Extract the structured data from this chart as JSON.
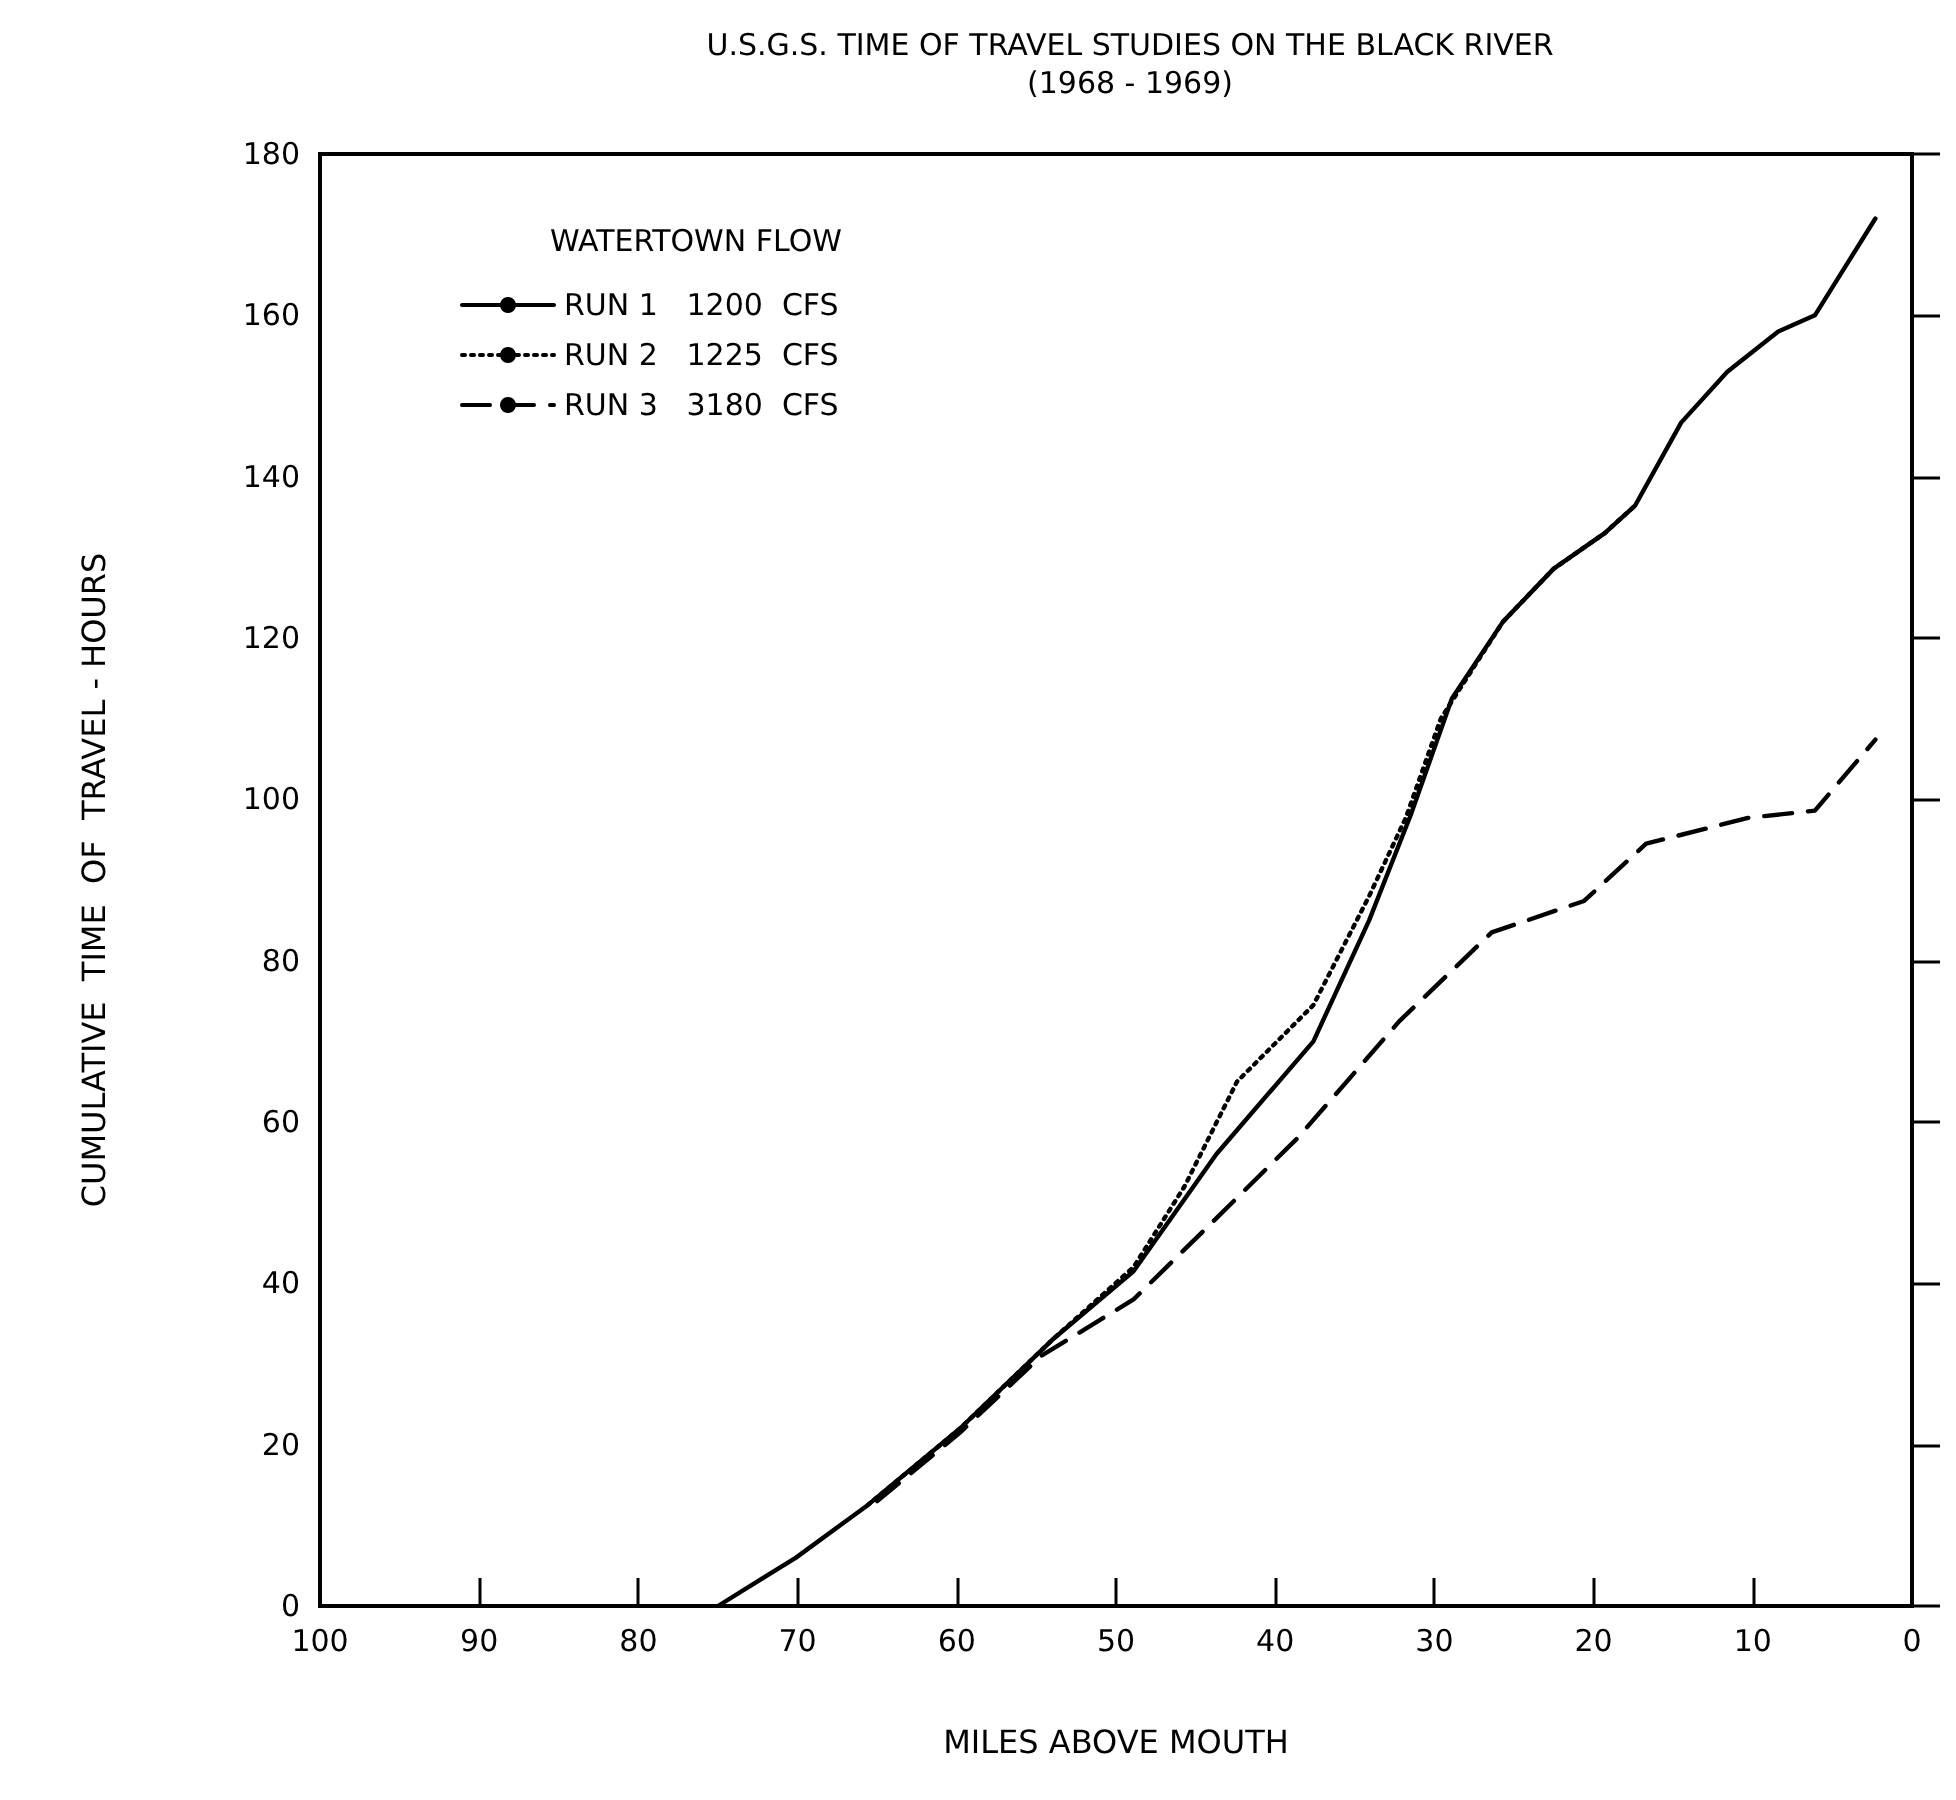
{
  "chart_data": {
    "type": "line",
    "title": "U.S.G.S. TIME OF TRAVEL STUDIES ON THE BLACK RIVER",
    "subtitle": "(1968 - 1969)",
    "xlabel": "MILES ABOVE MOUTH",
    "ylabel": "CUMULATIVE  TIME  OF  TRAVEL - HOURS",
    "legend_title": "WATERTOWN FLOW",
    "legend": "top left",
    "grid": false,
    "marker": "none",
    "xlim": [
      100,
      0
    ],
    "xticks": [
      100,
      90,
      80,
      70,
      60,
      50,
      40,
      30,
      20,
      10,
      0
    ],
    "ylim": [
      0,
      180
    ],
    "yticks": [
      0,
      20,
      40,
      60,
      80,
      100,
      120,
      140,
      160,
      180
    ],
    "series": [
      {
        "name": "RUN 1   1200  CFS",
        "color": "#000000",
        "line_style": "solid",
        "x": [
          75,
          70.1,
          65.6,
          59.8,
          54,
          48.9,
          43.7,
          37.6,
          34.1,
          31.5,
          28.9,
          25.7,
          22.5,
          19.3,
          17.4,
          14.5,
          11.6,
          8.4,
          6.1,
          4.2,
          2.3
        ],
        "values": [
          0,
          6,
          12.5,
          22,
          33,
          41.5,
          56,
          70,
          85,
          98,
          112.5,
          122,
          128.6,
          133,
          136.4,
          146.7,
          153,
          158,
          160,
          166,
          172
        ]
      },
      {
        "name": "RUN 2   1225  CFS",
        "color": "#000000",
        "line_style": "dotted",
        "x": [
          65.6,
          59.8,
          54,
          48.9,
          45.7,
          42.4,
          37.6,
          34.1,
          31.8,
          29.6,
          25.7,
          22.5,
          19.3,
          17.4
        ],
        "values": [
          12.5,
          22,
          33,
          42,
          52,
          65,
          74.5,
          88,
          97.7,
          110,
          122,
          128.6,
          133,
          136.4
        ]
      },
      {
        "name": "RUN 3   3180  CFS",
        "color": "#000000",
        "line_style": "dashed",
        "x": [
          65,
          59.8,
          54.7,
          48.9,
          44.4,
          38.6,
          32.2,
          26.4,
          20.6,
          16.7,
          10.3,
          6.1,
          2.3
        ],
        "values": [
          13,
          21.5,
          31,
          38,
          46.7,
          58,
          72.5,
          83.5,
          87.4,
          94.5,
          97.7,
          98.6,
          107.4
        ]
      }
    ]
  }
}
